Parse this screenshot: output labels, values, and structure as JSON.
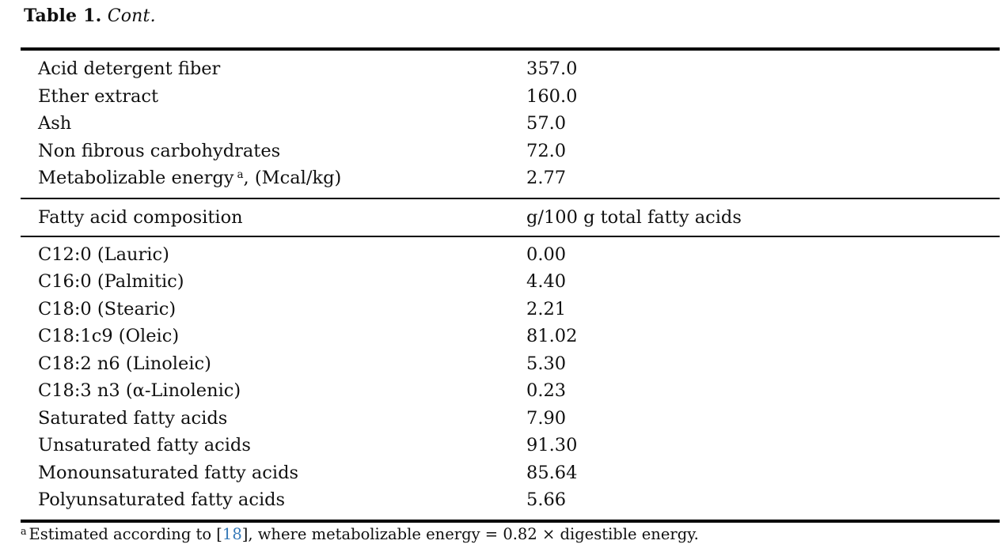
{
  "colors": {
    "background": "#ffffff",
    "text": "#101010",
    "rule": "#000000",
    "citation_link": "#3579b8"
  },
  "title": {
    "label": "Table 1.",
    "cont": "Cont."
  },
  "table": {
    "header": {
      "col1": "Fatty acid composition",
      "col2": "g/100 g total fatty acids"
    },
    "proximate_rows": [
      {
        "label": "Acid detergent fiber",
        "value": "357.0"
      },
      {
        "label": "Ether extract",
        "value": "160.0"
      },
      {
        "label": "Ash",
        "value": "57.0"
      },
      {
        "label": "Non fibrous carbohydrates",
        "value": "72.0"
      },
      {
        "label": "Metabolizable energy",
        "sup": "a",
        "label_post": ", (Mcal/kg)",
        "value": "2.77"
      }
    ],
    "fatty_acid_rows": [
      {
        "label": "C12:0 (Lauric)",
        "value": "0.00"
      },
      {
        "label": "C16:0 (Palmitic)",
        "value": "4.40"
      },
      {
        "label": "C18:0 (Stearic)",
        "value": "2.21"
      },
      {
        "label": "C18:1c9 (Oleic)",
        "value": "81.02"
      },
      {
        "label": "C18:2 n6 (Linoleic)",
        "value": "5.30"
      },
      {
        "label": "C18:3 n3 (α-Linolenic)",
        "value": "0.23"
      },
      {
        "label": "Saturated fatty acids",
        "value": "7.90"
      },
      {
        "label": "Unsaturated fatty acids",
        "value": "91.30"
      },
      {
        "label": "Monounsaturated fatty acids",
        "value": "85.64"
      },
      {
        "label": "Polyunsaturated fatty acids",
        "value": "5.66"
      }
    ]
  },
  "footnote": {
    "marker": "a",
    "text_pre": "Estimated according to [",
    "citation": "18",
    "text_post": "], where metabolizable energy = 0.82 × digestible energy."
  }
}
